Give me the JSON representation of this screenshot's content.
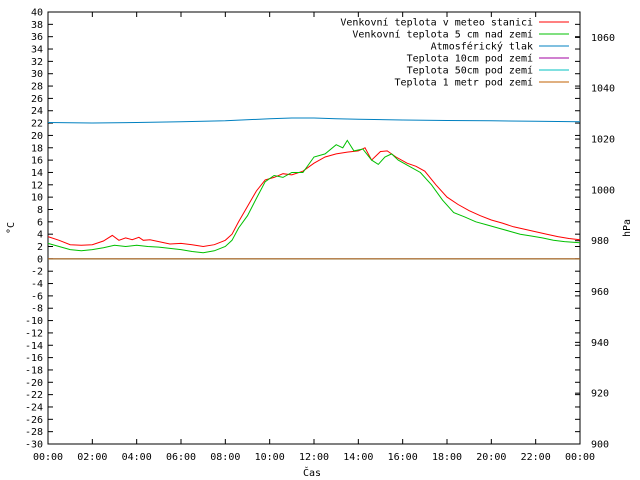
{
  "chart_data": {
    "type": "line",
    "xlabel": "Čas",
    "ylabel_left": "°C",
    "ylabel_right": "hPa",
    "xlim": [
      0,
      24
    ],
    "ylim_left": [
      -30,
      40
    ],
    "ylim_right": [
      900,
      1070
    ],
    "x_ticks": [
      "00:00",
      "02:00",
      "04:00",
      "06:00",
      "08:00",
      "10:00",
      "12:00",
      "14:00",
      "16:00",
      "18:00",
      "20:00",
      "22:00",
      "00:00"
    ],
    "y_ticks_left": [
      -30,
      -28,
      -26,
      -24,
      -22,
      -20,
      -18,
      -16,
      -14,
      -12,
      -10,
      -8,
      -6,
      -4,
      -2,
      0,
      2,
      4,
      6,
      8,
      10,
      12,
      14,
      16,
      18,
      20,
      22,
      24,
      26,
      28,
      30,
      32,
      34,
      36,
      38,
      40
    ],
    "y_ticks_right": [
      900,
      920,
      940,
      960,
      980,
      1000,
      1020,
      1040,
      1060
    ],
    "grid": false,
    "legend_position": "top-right",
    "series": [
      {
        "name": "Venkovní teplota v meteo stanici",
        "color": "#ff0000",
        "axis": "left",
        "points": [
          [
            0,
            3.6
          ],
          [
            0.5,
            3.0
          ],
          [
            1,
            2.3
          ],
          [
            1.5,
            2.2
          ],
          [
            2,
            2.3
          ],
          [
            2.5,
            2.9
          ],
          [
            2.9,
            3.8
          ],
          [
            3.2,
            3.0
          ],
          [
            3.5,
            3.4
          ],
          [
            3.8,
            3.1
          ],
          [
            4.1,
            3.5
          ],
          [
            4.3,
            3.0
          ],
          [
            4.6,
            3.1
          ],
          [
            5,
            2.8
          ],
          [
            5.5,
            2.4
          ],
          [
            6,
            2.5
          ],
          [
            6.5,
            2.3
          ],
          [
            7,
            2.0
          ],
          [
            7.5,
            2.3
          ],
          [
            8,
            3.0
          ],
          [
            8.3,
            4.0
          ],
          [
            8.6,
            6.0
          ],
          [
            9,
            8.5
          ],
          [
            9.4,
            11.0
          ],
          [
            9.8,
            12.8
          ],
          [
            10.2,
            13.2
          ],
          [
            10.6,
            13.8
          ],
          [
            11,
            13.6
          ],
          [
            11.5,
            14.2
          ],
          [
            12,
            15.5
          ],
          [
            12.5,
            16.5
          ],
          [
            13,
            17.0
          ],
          [
            13.5,
            17.3
          ],
          [
            14,
            17.5
          ],
          [
            14.3,
            18.0
          ],
          [
            14.6,
            16.0
          ],
          [
            15,
            17.4
          ],
          [
            15.3,
            17.5
          ],
          [
            15.7,
            16.5
          ],
          [
            16.2,
            15.5
          ],
          [
            16.6,
            15.0
          ],
          [
            17,
            14.2
          ],
          [
            17.5,
            12.0
          ],
          [
            18,
            10.0
          ],
          [
            18.5,
            8.8
          ],
          [
            19,
            7.8
          ],
          [
            19.5,
            7.0
          ],
          [
            20,
            6.3
          ],
          [
            20.5,
            5.8
          ],
          [
            21,
            5.2
          ],
          [
            21.5,
            4.8
          ],
          [
            22,
            4.4
          ],
          [
            22.5,
            4.0
          ],
          [
            23,
            3.6
          ],
          [
            23.5,
            3.3
          ],
          [
            24,
            3.1
          ]
        ]
      },
      {
        "name": "Venkovní teplota 5 cm nad zemí",
        "color": "#00c000",
        "axis": "left",
        "points": [
          [
            0,
            2.5
          ],
          [
            0.5,
            2.0
          ],
          [
            1,
            1.5
          ],
          [
            1.5,
            1.3
          ],
          [
            2,
            1.5
          ],
          [
            2.5,
            1.8
          ],
          [
            3,
            2.2
          ],
          [
            3.5,
            2.0
          ],
          [
            4,
            2.2
          ],
          [
            4.5,
            2.0
          ],
          [
            5,
            1.9
          ],
          [
            5.5,
            1.7
          ],
          [
            6,
            1.5
          ],
          [
            6.5,
            1.2
          ],
          [
            7,
            1.0
          ],
          [
            7.5,
            1.3
          ],
          [
            8,
            2.0
          ],
          [
            8.3,
            3.0
          ],
          [
            8.6,
            5.0
          ],
          [
            9,
            7.0
          ],
          [
            9.4,
            9.8
          ],
          [
            9.8,
            12.5
          ],
          [
            10.2,
            13.5
          ],
          [
            10.6,
            13.2
          ],
          [
            11,
            14.0
          ],
          [
            11.5,
            14.0
          ],
          [
            12,
            16.5
          ],
          [
            12.5,
            17.0
          ],
          [
            13,
            18.5
          ],
          [
            13.3,
            18.0
          ],
          [
            13.5,
            19.2
          ],
          [
            13.8,
            17.5
          ],
          [
            14.2,
            17.8
          ],
          [
            14.6,
            16.0
          ],
          [
            14.9,
            15.3
          ],
          [
            15.2,
            16.5
          ],
          [
            15.5,
            17.0
          ],
          [
            15.8,
            16.0
          ],
          [
            16.3,
            15.0
          ],
          [
            16.8,
            14.0
          ],
          [
            17.3,
            12.0
          ],
          [
            17.8,
            9.5
          ],
          [
            18.3,
            7.5
          ],
          [
            18.8,
            6.8
          ],
          [
            19.3,
            6.0
          ],
          [
            19.8,
            5.5
          ],
          [
            20.3,
            5.0
          ],
          [
            20.8,
            4.5
          ],
          [
            21.3,
            4.0
          ],
          [
            21.8,
            3.7
          ],
          [
            22.3,
            3.4
          ],
          [
            22.8,
            3.0
          ],
          [
            23.3,
            2.8
          ],
          [
            24,
            2.6
          ]
        ]
      },
      {
        "name": "Atmosférický tlak",
        "color": "#0080c0",
        "axis": "right",
        "points": [
          [
            0,
            1026.5
          ],
          [
            2,
            1026.3
          ],
          [
            4,
            1026.5
          ],
          [
            6,
            1026.8
          ],
          [
            8,
            1027.2
          ],
          [
            10,
            1028.0
          ],
          [
            11,
            1028.3
          ],
          [
            12,
            1028.3
          ],
          [
            13,
            1028.0
          ],
          [
            14,
            1027.8
          ],
          [
            16,
            1027.5
          ],
          [
            18,
            1027.3
          ],
          [
            20,
            1027.2
          ],
          [
            22,
            1027.0
          ],
          [
            24,
            1026.8
          ]
        ]
      },
      {
        "name": "Teplota 10cm pod zemí",
        "color": "#a000a0",
        "axis": "left",
        "points": [
          [
            0,
            0
          ],
          [
            24,
            0
          ]
        ]
      },
      {
        "name": "Teplota 50cm pod zemí",
        "color": "#00c0c0",
        "axis": "left",
        "points": [
          [
            0,
            0
          ],
          [
            24,
            0
          ]
        ]
      },
      {
        "name": "Teplota 1 metr pod zemí",
        "color": "#c06000",
        "axis": "left",
        "points": [
          [
            0,
            0
          ],
          [
            24,
            0
          ]
        ]
      }
    ]
  }
}
